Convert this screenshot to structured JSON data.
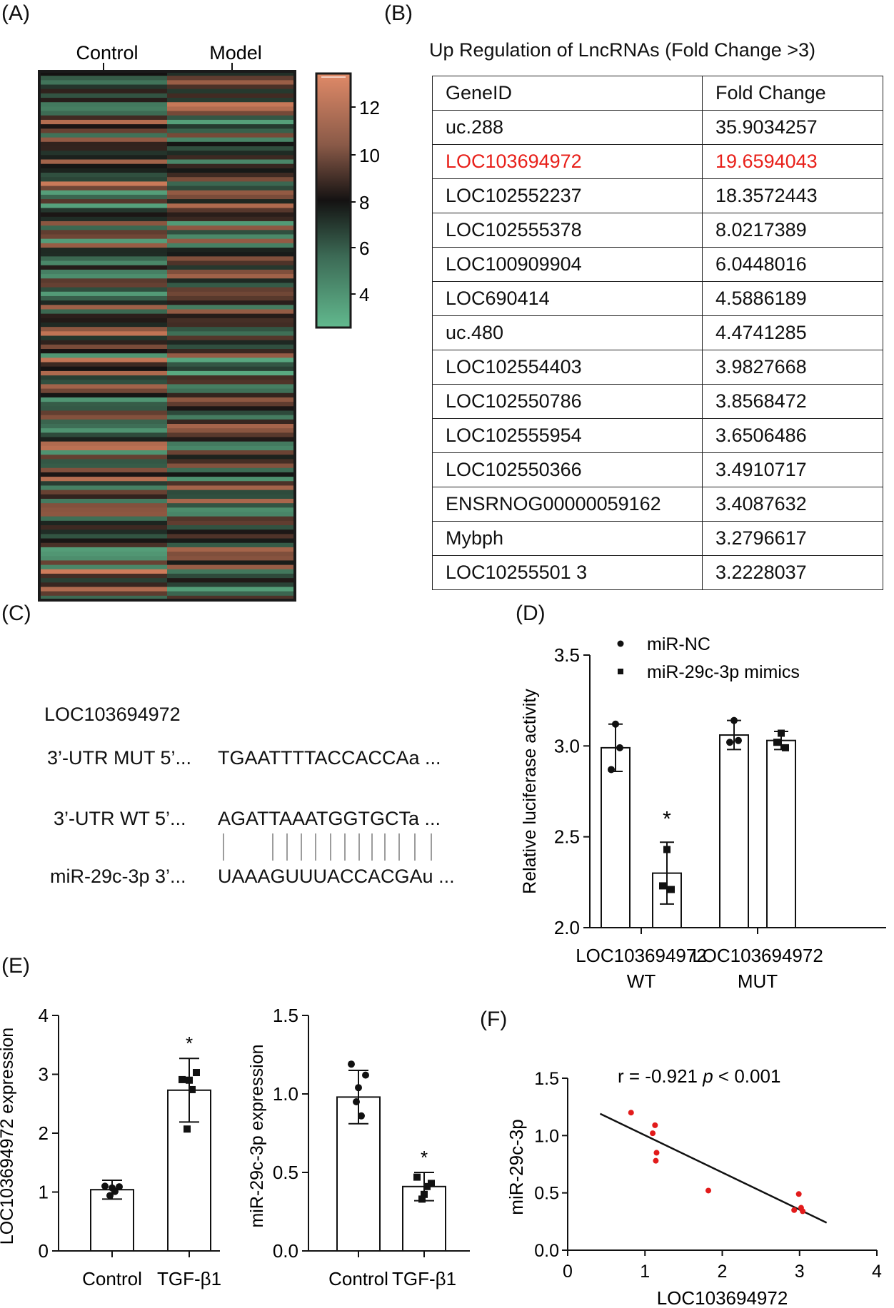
{
  "panels": {
    "a": "(A)",
    "b": "(B)",
    "c": "(C)",
    "d": "(D)",
    "e": "(E)",
    "f": "(F)"
  },
  "heatmap": {
    "columns": [
      "Control",
      "Model"
    ],
    "colorbar_ticks": [
      "12",
      "10",
      "8",
      "6",
      "4"
    ],
    "colors": {
      "high": "#d9825f",
      "mid": "#141212",
      "low": "#5fb58a"
    }
  },
  "table": {
    "title": "Up Regulation of LncRNAs (Fold Change >3)",
    "headers": [
      "GeneID",
      "Fold Change"
    ],
    "rows": [
      [
        "uc.288",
        "35.9034257"
      ],
      [
        "LOC103694972",
        "19.6594043"
      ],
      [
        "LOC102552237",
        "18.3572443"
      ],
      [
        "LOC102555378",
        "8.0217389"
      ],
      [
        "LOC100909904",
        "6.0448016"
      ],
      [
        "LOC690414",
        "4.5886189"
      ],
      [
        "uc.480",
        "4.4741285"
      ],
      [
        "LOC102554403",
        "3.9827668"
      ],
      [
        "LOC102550786",
        "3.8568472"
      ],
      [
        "LOC102555954",
        "3.6506486"
      ],
      [
        "LOC102550366",
        "3.4910717"
      ],
      [
        "ENSRNOG00000059162",
        "3.4087632"
      ],
      [
        "Mybph",
        "3.2796617"
      ],
      [
        "LOC10255501 3",
        "3.2228037"
      ]
    ],
    "highlight_color": "#e8201a"
  },
  "sequences": {
    "gene": "LOC103694972",
    "mut_label": "3’-UTR MUT 5’...",
    "mut_seq": "TGAATTTTACCACCAa ...",
    "wt_label": "3’-UTR WT 5’...",
    "wt_seq": "AGATTAAATGGTGCTa ...",
    "mir_label": "miR-29c-3p 3’...",
    "mir_seq": "UAAAGUUUACCACGAu ..."
  },
  "chart_data": [
    {
      "panel": "D",
      "type": "bar",
      "ylabel": "Relative luciferase activity",
      "ylim": [
        2.0,
        3.5
      ],
      "yticks": [
        "2.0",
        "2.5",
        "3.0",
        "3.5"
      ],
      "groups": [
        "LOC103694972\nWT",
        "LOC103694972\nMUT"
      ],
      "group_lines": [
        [
          "LOC103694972",
          "WT"
        ],
        [
          "LOC103694972",
          "MUT"
        ]
      ],
      "legend": [
        "miR-NC",
        "miR-29c-3p mimics"
      ],
      "legend_placement": "top",
      "series": [
        {
          "name": "miR-NC",
          "values": [
            2.99,
            3.06
          ],
          "errors": [
            0.13,
            0.08
          ],
          "points": [
            [
              3.12,
              2.87,
              2.99
            ],
            [
              3.14,
              3.02,
              3.03
            ]
          ]
        },
        {
          "name": "miR-29c-3p mimics",
          "values": [
            2.3,
            3.03
          ],
          "errors": [
            0.17,
            0.05
          ],
          "points": [
            [
              2.43,
              2.23,
              2.21
            ],
            [
              3.07,
              3.02,
              2.99
            ]
          ]
        }
      ],
      "annotations": [
        "*"
      ]
    },
    {
      "panel": "E-left",
      "type": "bar",
      "ylabel": "LOC103694972 expression",
      "ylim": [
        0,
        4
      ],
      "yticks": [
        "0",
        "1",
        "2",
        "3",
        "4"
      ],
      "categories": [
        "Control",
        "TGF-β1"
      ],
      "values": [
        1.04,
        2.73
      ],
      "errors": [
        0.16,
        0.54
      ],
      "points": [
        [
          1.1,
          1.09,
          1.07,
          0.94,
          1.01
        ],
        [
          2.91,
          3.03,
          2.9,
          2.07,
          2.74
        ]
      ],
      "annotations": [
        "*"
      ]
    },
    {
      "panel": "E-right",
      "type": "bar",
      "ylabel": "miR-29c-3p expression",
      "ylim": [
        0,
        1.5
      ],
      "yticks": [
        "0.0",
        "0.5",
        "1.0",
        "1.5"
      ],
      "categories": [
        "Control",
        "TGF-β1"
      ],
      "values": [
        0.98,
        0.41
      ],
      "errors": [
        0.17,
        0.09
      ],
      "points": [
        [
          1.19,
          1.12,
          1.04,
          0.95,
          0.86
        ],
        [
          0.47,
          0.43,
          0.36,
          0.33,
          0.41
        ]
      ],
      "annotations": [
        "*"
      ]
    },
    {
      "panel": "F",
      "type": "scatter",
      "xlabel": "LOC103694972",
      "ylabel": "miR-29c-3p",
      "xlim": [
        0,
        4
      ],
      "ylim": [
        0,
        1.5
      ],
      "xticks": [
        "0",
        "1",
        "2",
        "3",
        "4"
      ],
      "yticks": [
        "0.0",
        "0.5",
        "1.0",
        "1.5"
      ],
      "annotation": "r = -0.921",
      "p_label": "p",
      "p_value": " < 0.001",
      "x": [
        0.82,
        1.1,
        1.13,
        1.15,
        1.14,
        1.82,
        2.93,
        2.99,
        3.02,
        3.04
      ],
      "y": [
        1.2,
        1.02,
        1.09,
        0.85,
        0.78,
        0.52,
        0.35,
        0.49,
        0.37,
        0.34
      ],
      "fit_line": {
        "x": [
          0.42,
          3.35
        ],
        "y": [
          1.19,
          0.24
        ]
      },
      "point_color": "#e21b1b"
    }
  ]
}
